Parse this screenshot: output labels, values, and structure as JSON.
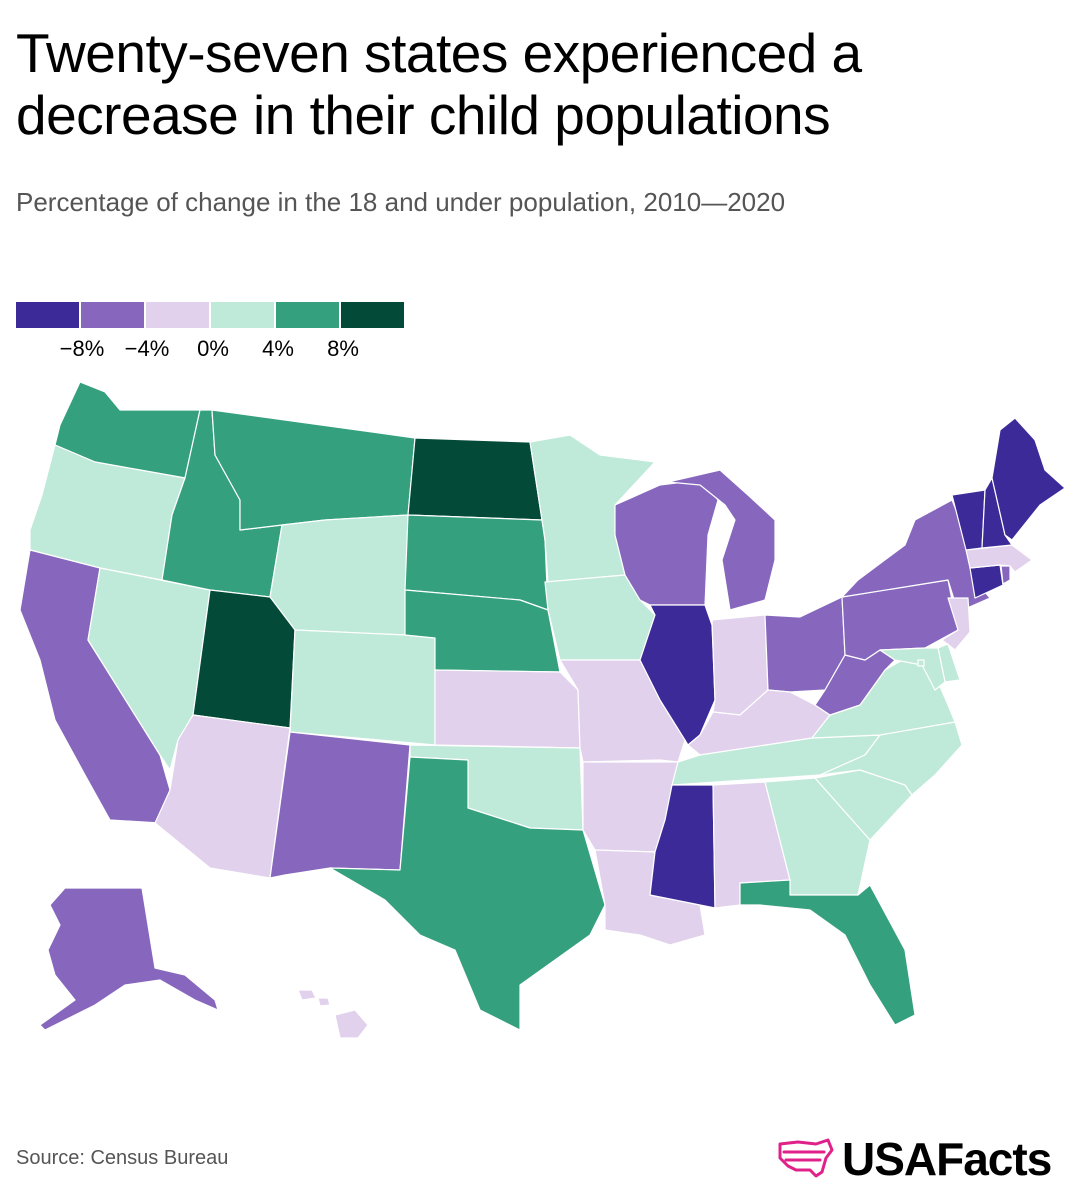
{
  "title": "Twenty-seven states experienced a decrease in their child populations",
  "subtitle": "Percentage of change in the 18 and under population, 2010—2020",
  "legend": {
    "colors": [
      "#3d2a99",
      "#8667bd",
      "#e1d1ec",
      "#bfe9d8",
      "#35a07e",
      "#034a38"
    ],
    "ticks": [
      "−8%",
      "−4%",
      "0%",
      "4%",
      "8%"
    ]
  },
  "colors": {
    "le_minus8": "#3d2a99",
    "minus8_minus4": "#8667bd",
    "minus4_0": "#e1d1ec",
    "0_4": "#bfe9d8",
    "4_8": "#35a07e",
    "ge_8": "#034a38"
  },
  "states": {
    "WA": "4_8",
    "OR": "0_4",
    "CA": "minus8_minus4",
    "NV": "0_4",
    "ID": "4_8",
    "MT": "4_8",
    "WY": "0_4",
    "UT": "ge_8",
    "AZ": "minus4_0",
    "CO": "0_4",
    "NM": "minus8_minus4",
    "ND": "ge_8",
    "SD": "4_8",
    "NE": "4_8",
    "KS": "minus4_0",
    "OK": "0_4",
    "TX": "4_8",
    "MN": "0_4",
    "IA": "0_4",
    "MO": "minus4_0",
    "AR": "minus4_0",
    "LA": "minus4_0",
    "WI": "minus8_minus4",
    "IL": "le_minus8",
    "MI": "minus8_minus4",
    "IN": "minus4_0",
    "OH": "minus8_minus4",
    "KY": "minus4_0",
    "TN": "0_4",
    "MS": "le_minus8",
    "AL": "minus4_0",
    "GA": "0_4",
    "FL": "4_8",
    "SC": "0_4",
    "NC": "0_4",
    "VA": "0_4",
    "WV": "minus8_minus4",
    "PA": "minus8_minus4",
    "NY": "minus8_minus4",
    "NJ": "minus4_0",
    "DE": "0_4",
    "MD": "0_4",
    "DC": "0_4",
    "CT": "le_minus8",
    "RI": "minus8_minus4",
    "MA": "minus4_0",
    "VT": "le_minus8",
    "NH": "le_minus8",
    "ME": "le_minus8",
    "AK": "minus8_minus4",
    "HI": "minus4_0"
  },
  "source": "Source: Census Bureau",
  "brand": {
    "name": "USAFacts",
    "accent": "#e0218a"
  }
}
